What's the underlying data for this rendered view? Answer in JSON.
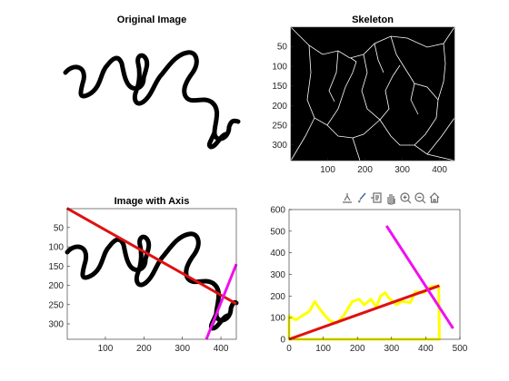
{
  "figure": {
    "panels": [
      {
        "id": "original",
        "title": "Original Image"
      },
      {
        "id": "skeleton",
        "title": "Skeleton"
      },
      {
        "id": "image-with-axis",
        "title": "Image with Axis"
      },
      {
        "id": "plot",
        "title": ""
      }
    ],
    "toolbar": {
      "icons": [
        "export-icon",
        "brush-icon",
        "datatip-icon",
        "pan-icon",
        "zoom-in-icon",
        "zoom-out-icon",
        "home-icon"
      ]
    }
  },
  "chart_data": [
    {
      "type": "image",
      "title": "Original Image",
      "axes_visible": false
    },
    {
      "type": "image",
      "title": "Skeleton",
      "xticks": [
        "100",
        "200",
        "300",
        "400"
      ],
      "yticks": [
        "50",
        "100",
        "150",
        "200",
        "250",
        "300"
      ],
      "xlim": [
        1,
        440
      ],
      "ylim": [
        1,
        340
      ],
      "y_direction": "reverse",
      "background": "#000000",
      "line_color": "#ffffff"
    },
    {
      "type": "image",
      "title": "Image with Axis",
      "xticks": [
        "100",
        "200",
        "300",
        "400"
      ],
      "yticks": [
        "50",
        "100",
        "150",
        "200",
        "250",
        "300"
      ],
      "xlim": [
        1,
        440
      ],
      "ylim": [
        1,
        340
      ],
      "y_direction": "reverse",
      "overlay_lines": [
        {
          "color": "#e01010",
          "points": [
            [
              0,
              0
            ],
            [
              440,
              248
            ]
          ]
        },
        {
          "color": "#ee10ee",
          "points": [
            [
              362,
              340
            ],
            [
              440,
              145
            ]
          ]
        }
      ]
    },
    {
      "type": "line",
      "title": "",
      "xticks": [
        "0",
        "100",
        "200",
        "300",
        "400",
        "500"
      ],
      "yticks": [
        "0",
        "100",
        "200",
        "300",
        "400",
        "500",
        "600"
      ],
      "xlim": [
        0,
        500
      ],
      "ylim": [
        0,
        600
      ],
      "series": [
        {
          "color": "#ffff00",
          "points": [
            [
              0,
              110
            ],
            [
              20,
              90
            ],
            [
              40,
              110
            ],
            [
              60,
              130
            ],
            [
              75,
              175
            ],
            [
              90,
              140
            ],
            [
              105,
              110
            ],
            [
              120,
              85
            ],
            [
              140,
              75
            ],
            [
              160,
              110
            ],
            [
              185,
              175
            ],
            [
              205,
              185
            ],
            [
              220,
              160
            ],
            [
              240,
              185
            ],
            [
              255,
              150
            ],
            [
              268,
              200
            ],
            [
              282,
              215
            ],
            [
              290,
              195
            ],
            [
              300,
              180
            ],
            [
              315,
              160
            ],
            [
              330,
              175
            ],
            [
              355,
              170
            ],
            [
              370,
              220
            ],
            [
              395,
              215
            ],
            [
              405,
              235
            ],
            [
              420,
              245
            ],
            [
              438,
              245
            ],
            [
              440,
              0
            ],
            [
              0,
              0
            ],
            [
              0,
              110
            ]
          ]
        },
        {
          "color": "#e01010",
          "points": [
            [
              0,
              0
            ],
            [
              440,
              248
            ]
          ]
        },
        {
          "color": "#ee10ee",
          "points": [
            [
              285,
              525
            ],
            [
              480,
              50
            ]
          ]
        }
      ]
    }
  ]
}
